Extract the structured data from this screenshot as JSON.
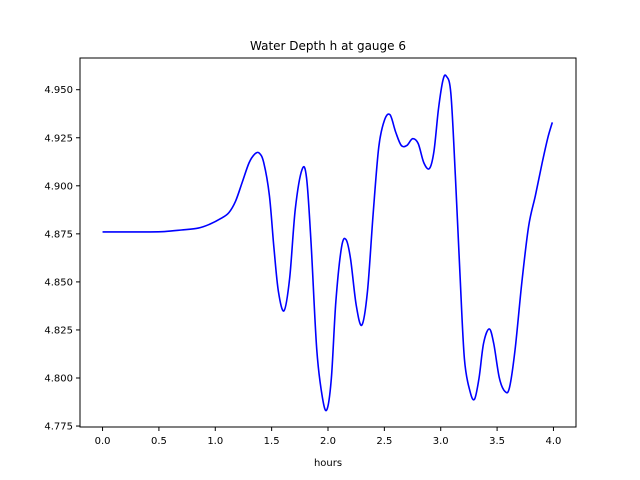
{
  "chart_data": {
    "type": "line",
    "title": "Water Depth h at gauge 6",
    "xlabel": "hours",
    "ylabel": "",
    "xlim": [
      -0.2,
      4.2
    ],
    "ylim": [
      4.7745,
      4.9665
    ],
    "xticks": [
      0.0,
      0.5,
      1.0,
      1.5,
      2.0,
      2.5,
      3.0,
      3.5,
      4.0
    ],
    "xtick_labels": [
      "0.0",
      "0.5",
      "1.0",
      "1.5",
      "2.0",
      "2.5",
      "3.0",
      "3.5",
      "4.0"
    ],
    "yticks": [
      4.775,
      4.8,
      4.825,
      4.85,
      4.875,
      4.9,
      4.925,
      4.95
    ],
    "ytick_labels": [
      "4.775",
      "4.800",
      "4.825",
      "4.850",
      "4.875",
      "4.900",
      "4.925",
      "4.950"
    ],
    "grid": false,
    "series": [
      {
        "color": "#0000ff",
        "points": [
          [
            0.0,
            4.876
          ],
          [
            0.2,
            4.876
          ],
          [
            0.4,
            4.876
          ],
          [
            0.55,
            4.8762
          ],
          [
            0.7,
            4.877
          ],
          [
            0.85,
            4.878
          ],
          [
            0.95,
            4.88
          ],
          [
            1.05,
            4.883
          ],
          [
            1.12,
            4.886
          ],
          [
            1.18,
            4.892
          ],
          [
            1.24,
            4.902
          ],
          [
            1.3,
            4.912
          ],
          [
            1.35,
            4.9165
          ],
          [
            1.39,
            4.917
          ],
          [
            1.43,
            4.912
          ],
          [
            1.48,
            4.895
          ],
          [
            1.52,
            4.868
          ],
          [
            1.56,
            4.845
          ],
          [
            1.61,
            4.835
          ],
          [
            1.66,
            4.852
          ],
          [
            1.71,
            4.888
          ],
          [
            1.77,
            4.9085
          ],
          [
            1.81,
            4.904
          ],
          [
            1.85,
            4.87
          ],
          [
            1.9,
            4.815
          ],
          [
            1.95,
            4.79
          ],
          [
            1.99,
            4.7835
          ],
          [
            2.03,
            4.8
          ],
          [
            2.07,
            4.84
          ],
          [
            2.12,
            4.868
          ],
          [
            2.16,
            4.872
          ],
          [
            2.2,
            4.862
          ],
          [
            2.25,
            4.838
          ],
          [
            2.3,
            4.8275
          ],
          [
            2.35,
            4.845
          ],
          [
            2.4,
            4.885
          ],
          [
            2.45,
            4.92
          ],
          [
            2.5,
            4.934
          ],
          [
            2.55,
            4.937
          ],
          [
            2.6,
            4.928
          ],
          [
            2.65,
            4.921
          ],
          [
            2.7,
            4.921
          ],
          [
            2.75,
            4.9245
          ],
          [
            2.8,
            4.922
          ],
          [
            2.85,
            4.912
          ],
          [
            2.9,
            4.909
          ],
          [
            2.94,
            4.918
          ],
          [
            2.98,
            4.94
          ],
          [
            3.02,
            4.955
          ],
          [
            3.05,
            4.957
          ],
          [
            3.09,
            4.948
          ],
          [
            3.13,
            4.905
          ],
          [
            3.17,
            4.855
          ],
          [
            3.21,
            4.81
          ],
          [
            3.26,
            4.793
          ],
          [
            3.3,
            4.789
          ],
          [
            3.34,
            4.8
          ],
          [
            3.38,
            4.818
          ],
          [
            3.43,
            4.8255
          ],
          [
            3.47,
            4.818
          ],
          [
            3.52,
            4.8
          ],
          [
            3.57,
            4.793
          ],
          [
            3.61,
            4.795
          ],
          [
            3.66,
            4.815
          ],
          [
            3.72,
            4.85
          ],
          [
            3.78,
            4.879
          ],
          [
            3.84,
            4.895
          ],
          [
            3.9,
            4.912
          ],
          [
            3.95,
            4.925
          ],
          [
            3.99,
            4.933
          ]
        ]
      }
    ]
  }
}
